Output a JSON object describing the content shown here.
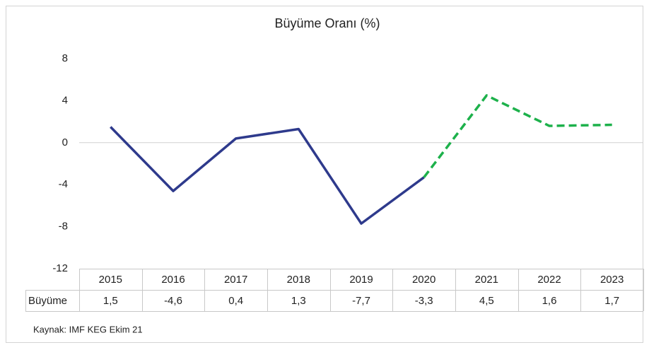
{
  "chart_data": {
    "type": "line",
    "title": "Büyüme Oranı (%)",
    "categories": [
      "2015",
      "2016",
      "2017",
      "2018",
      "2019",
      "2020",
      "2021",
      "2022",
      "2023"
    ],
    "series": [
      {
        "name": "Büyüme",
        "color": "#2e3a8c",
        "values": [
          1.5,
          -4.6,
          0.4,
          1.3,
          -7.7,
          -3.3,
          4.5,
          1.6,
          1.7
        ],
        "value_labels": [
          "1,5",
          "-4,6",
          "0,4",
          "1,3",
          "-7,7",
          "-3,3",
          "4,5",
          "1,6",
          "1,7"
        ]
      }
    ],
    "forecast": {
      "from": "2020",
      "color": "#1db14b",
      "dashed": true
    },
    "ylim": [
      -12,
      8
    ],
    "yticks": [
      8,
      4,
      0,
      -4,
      -8,
      -12
    ],
    "grid": false,
    "source": "Kaynak: IMF KEG  Ekim  21"
  }
}
